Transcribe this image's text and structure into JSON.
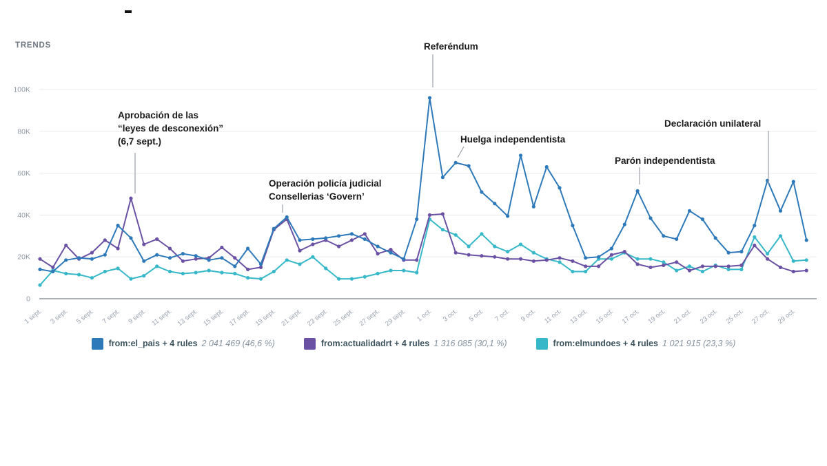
{
  "window": {
    "title_dash": "-"
  },
  "chart": {
    "label": "TRENDS"
  },
  "chart_data": {
    "type": "line",
    "title": "TRENDS",
    "x_range": "1 sept – 30 oct (daily, 60 points)",
    "y_unit": "K",
    "ylim": [
      0,
      100
    ],
    "grid": "horizontal",
    "legend_position": "bottom-center",
    "y_ticks": [
      {
        "v": 0,
        "label": "0"
      },
      {
        "v": 20,
        "label": "20K"
      },
      {
        "v": 40,
        "label": "40K"
      },
      {
        "v": 60,
        "label": "60K"
      },
      {
        "v": 80,
        "label": "80K"
      },
      {
        "v": 100,
        "label": "100K"
      }
    ],
    "x_tick_labels": [
      "1 sept.",
      "3 sept.",
      "5 sept.",
      "7 sept.",
      "9 sept.",
      "11 sept.",
      "13 sept.",
      "15 sept.",
      "17 sept.",
      "19 sept.",
      "21 sept.",
      "23 sept.",
      "25 sept.",
      "27 sept.",
      "29 sept.",
      "1 oct.",
      "3 oct.",
      "5 oct.",
      "7 oct.",
      "9 oct.",
      "11 oct.",
      "13 oct.",
      "15 oct.",
      "17 oct.",
      "19 oct.",
      "21 oct.",
      "23 oct.",
      "25 oct.",
      "27 oct.",
      "29 oct."
    ],
    "series": [
      {
        "name": "from:el_pais + 4 rules",
        "total": "2 041 469 (46,6 %)",
        "color": "#2e79b9",
        "values": [
          14,
          13,
          18.5,
          19.5,
          19,
          21,
          35,
          29,
          18,
          21,
          19.5,
          21.5,
          20.5,
          18.5,
          19.5,
          15.5,
          24,
          16.5,
          33.5,
          39,
          28,
          28.5,
          29,
          30,
          31,
          28.5,
          25,
          22,
          19,
          38,
          96,
          58,
          65,
          63.5,
          51,
          45.5,
          39.5,
          68.5,
          44,
          63,
          53,
          35,
          19.5,
          20,
          24,
          35.5,
          51.5,
          38.5,
          30,
          28.5,
          42,
          38,
          29,
          22,
          22.5,
          35,
          56.5,
          42,
          56,
          28
        ]
      },
      {
        "name": "from:actualidadrt + 4 rules",
        "total": "1 316 085 (30,1 %)",
        "color": "#6a51a3",
        "values": [
          19,
          15,
          25.5,
          19,
          22,
          28,
          24,
          48,
          26,
          28.5,
          24,
          18,
          19,
          19.5,
          24.5,
          19.5,
          14,
          15,
          33,
          38,
          23,
          26,
          28,
          25,
          28,
          31,
          21.5,
          23.5,
          18.5,
          18.5,
          40,
          40.5,
          22,
          21,
          20.5,
          20,
          19,
          19,
          18,
          18.5,
          19.5,
          18,
          15.5,
          15.5,
          21,
          22.5,
          16.5,
          15,
          16,
          17.5,
          13.5,
          15.5,
          15.5,
          15.5,
          16,
          25.5,
          19,
          15,
          13,
          13.5
        ]
      },
      {
        "name": "from:elmundoes + 4 rules",
        "total": "1 021 915 (23,3 %)",
        "color": "#36b8c8",
        "values": [
          6.5,
          13.5,
          12,
          11.5,
          10,
          13,
          14.5,
          9.5,
          11,
          15.5,
          13,
          12,
          12.5,
          13.5,
          12.5,
          12,
          10,
          9.5,
          13,
          18.5,
          16.5,
          20,
          14.5,
          9.5,
          9.5,
          10.5,
          12,
          13.5,
          13.5,
          12.5,
          38,
          33,
          30.5,
          25,
          31,
          25,
          22.5,
          26,
          22,
          19,
          17.5,
          13,
          13,
          19,
          19,
          22,
          19,
          19,
          17.5,
          13.5,
          15.5,
          13,
          16,
          14,
          14,
          29.5,
          21.5,
          30,
          18,
          18.5
        ]
      }
    ],
    "annotations": [
      {
        "id": "aprobacion-leyes",
        "lines": [
          "Aprobación de las",
          "“leyes de desconexión”",
          "(6,7 sept.)"
        ],
        "tx": 171,
        "ty": 158,
        "line": [
          196,
          222,
          196,
          281
        ]
      },
      {
        "id": "operacion-policia",
        "lines": [
          "Operación policía judicial",
          "Consellerias ‘Govern’"
        ],
        "tx": 390,
        "ty": 257,
        "line": [
          410,
          297,
          410,
          309
        ]
      },
      {
        "id": "referendum",
        "lines": [
          "Referéndum"
        ],
        "tx": 615,
        "ty": 58,
        "line": [
          628,
          79,
          628,
          127
        ]
      },
      {
        "id": "huelga-independentista",
        "lines": [
          "Huelga independentista"
        ],
        "tx": 668,
        "ty": 193,
        "line": [
          673,
          213,
          664,
          229
        ]
      },
      {
        "id": "paron-independentista",
        "lines": [
          "Parón independentista"
        ],
        "tx": 892,
        "ty": 224,
        "line": [
          928,
          243,
          928,
          268
        ]
      },
      {
        "id": "declaracion-unilateral",
        "lines": [
          "Declaración unilateral"
        ],
        "tx": 964,
        "ty": 170,
        "line": [
          1115,
          190,
          1115,
          268
        ]
      }
    ]
  }
}
